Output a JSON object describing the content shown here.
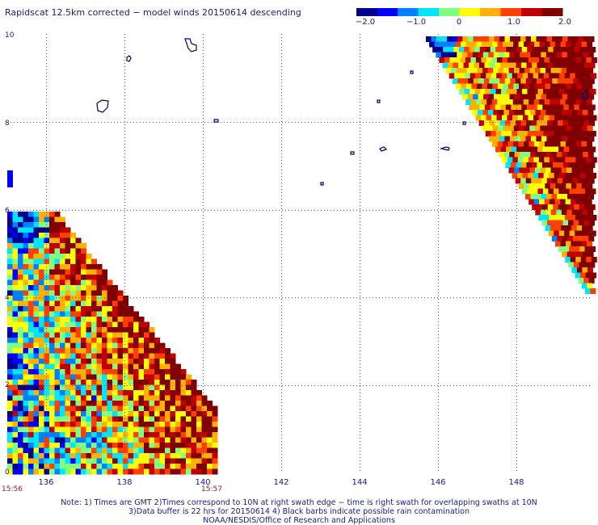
{
  "title": "Rapidscat 12.5km corrected − model winds 20150614 descending",
  "colorbar": {
    "ticks": [
      "−2.0",
      "−1.0",
      "0",
      "1.0",
      "2.0"
    ],
    "min": -2.0,
    "max": 2.0,
    "colors": [
      "#00008b",
      "#0000ff",
      "#0080ff",
      "#00e5ff",
      "#80ff80",
      "#ffff00",
      "#ffb000",
      "#ff4000",
      "#c00000",
      "#800000"
    ]
  },
  "axes": {
    "x_ticks": [
      "136",
      "138",
      "140",
      "142",
      "144",
      "146",
      "148"
    ],
    "y_ticks": [
      "0",
      "2",
      "4",
      "6",
      "8",
      "10"
    ]
  },
  "times": {
    "left": "15:56",
    "right": "15:57"
  },
  "notes": {
    "line1": "Note: 1) Times are GMT 2)Times correspond to 10N at right swath edge − time is right swath for overlapping swaths at 10N",
    "line2": "3)Data buffer is 22 hrs for 20150614 4) Black barbs indicate possible rain contamination",
    "line3": "NOAA/NESDIS/Office of Research and Applications"
  }
}
